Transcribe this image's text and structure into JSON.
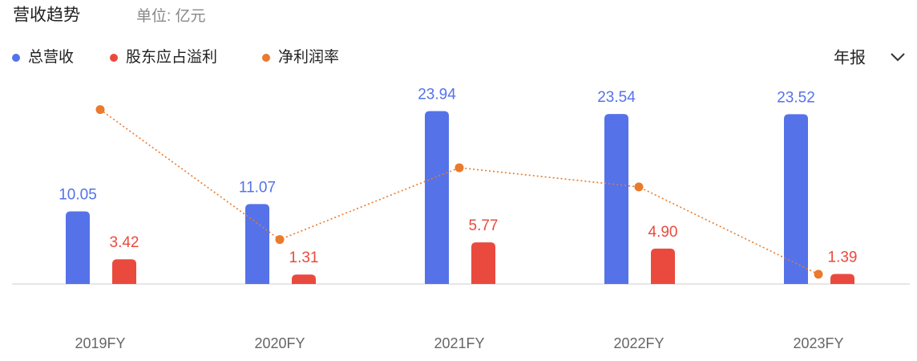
{
  "chart_data": {
    "type": "bar",
    "title": "营收趋势",
    "subtitle": "单位: 亿元",
    "categories": [
      "2019FY",
      "2020FY",
      "2021FY",
      "2022FY",
      "2023FY"
    ],
    "series": [
      {
        "name": "总营收",
        "color": "#5572e9",
        "type": "bar",
        "values": [
          10.05,
          11.07,
          23.94,
          23.54,
          23.52
        ]
      },
      {
        "name": "股东应占溢利",
        "color": "#ea4a3e",
        "type": "bar",
        "values": [
          3.42,
          1.31,
          5.77,
          4.9,
          1.39
        ],
        "value_labels": [
          "3.42",
          "1.31",
          "5.77",
          "4.90",
          "1.39"
        ]
      },
      {
        "name": "净利润率",
        "color": "#ea7a2c",
        "type": "line",
        "axis": "y2",
        "values": [
          34.03,
          11.83,
          24.1,
          20.82,
          5.91
        ]
      }
    ],
    "ylim": [
      0,
      26
    ],
    "y2lim": [
      4.25,
      36.3
    ],
    "grid": false
  },
  "period_selector": "年报"
}
